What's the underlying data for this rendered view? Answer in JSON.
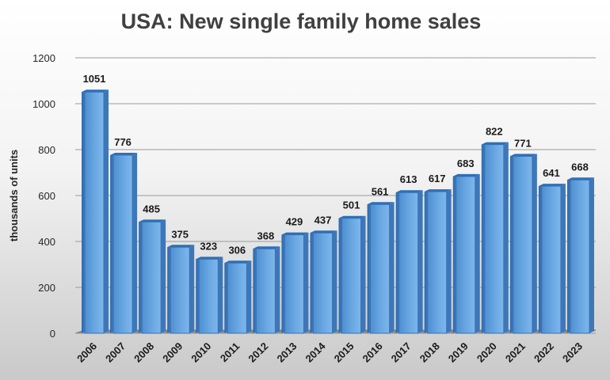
{
  "chart_data": {
    "type": "bar",
    "title": "USA: New single family home sales",
    "xlabel": "",
    "ylabel": "thousands of units",
    "ylim": [
      0,
      1200
    ],
    "yticks": [
      0,
      200,
      400,
      600,
      800,
      1000,
      1200
    ],
    "grid": true,
    "legend": "none",
    "bar_color": "#5b9bd5",
    "categories": [
      "2006",
      "2007",
      "2008",
      "2009",
      "2010",
      "2011",
      "2012",
      "2013",
      "2014",
      "2015",
      "2016",
      "2017",
      "2018",
      "2019",
      "2020",
      "2021",
      "2022",
      "2023"
    ],
    "values": [
      1051,
      776,
      485,
      375,
      323,
      306,
      368,
      429,
      437,
      501,
      561,
      613,
      617,
      683,
      822,
      771,
      641,
      668
    ]
  }
}
